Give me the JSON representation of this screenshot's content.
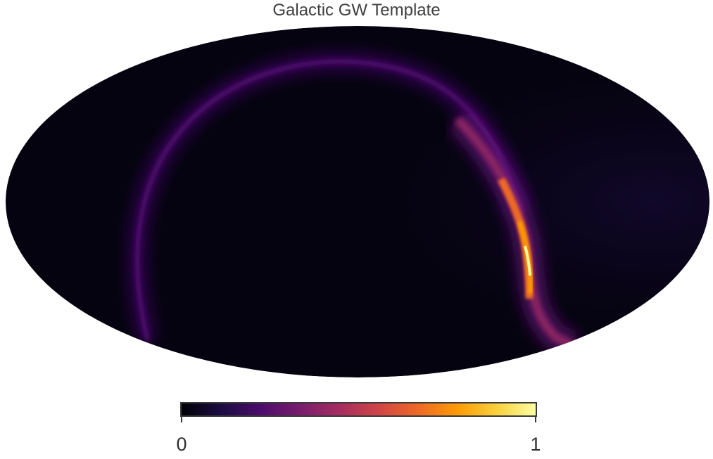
{
  "chart_data": {
    "type": "heatmap",
    "projection": "mollweide",
    "title": "Galactic GW Template",
    "colormap": "inferno",
    "colorbar": {
      "orientation": "horizontal",
      "placement": "bottom",
      "min": 0,
      "max": 1,
      "tick_labels": [
        "0",
        "1"
      ]
    },
    "features": [
      {
        "name": "faint arc",
        "peak_value": 0.3
      },
      {
        "name": "bright arc segment",
        "peak_value": 1.0
      }
    ],
    "background_value": 0.0,
    "grid": false
  },
  "colors": {
    "inferno_stops": [
      "#000004",
      "#1b0c41",
      "#4a0c6b",
      "#781c6d",
      "#a52c60",
      "#cf4446",
      "#ed6925",
      "#fb9b06",
      "#f7d13d",
      "#fcffa4"
    ],
    "title_color": "#404040"
  }
}
